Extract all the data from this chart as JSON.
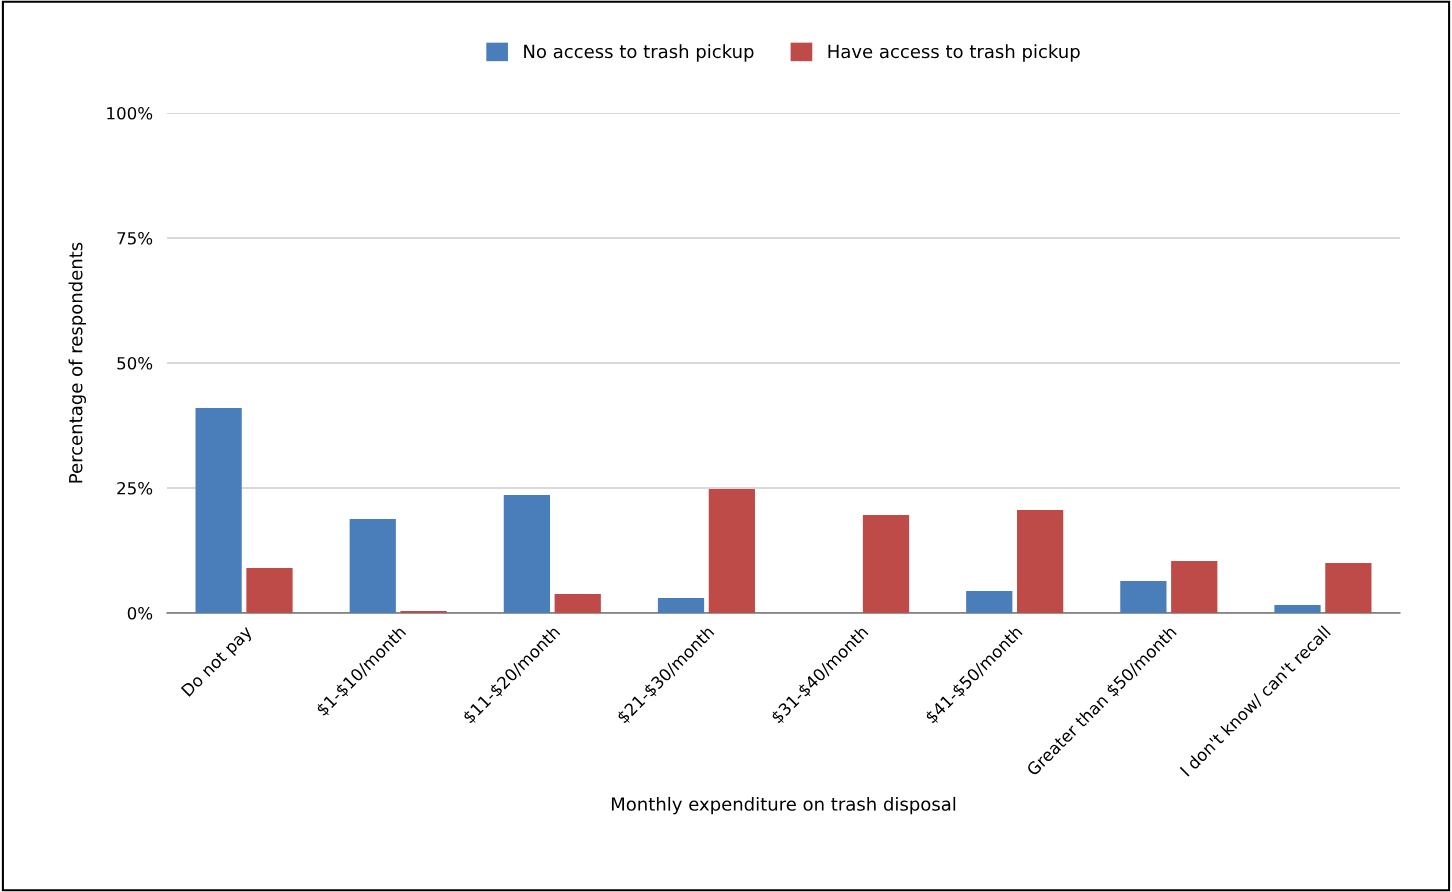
{
  "chart_data": {
    "type": "bar",
    "xlabel": "Monthly expenditure on trash disposal",
    "ylabel": "Percentage of respondents",
    "categories": [
      "Do not pay",
      "$1-$10/month",
      "$11-$20/month",
      "$21-$30/month",
      "$31-$40/month",
      "$41-$50/month",
      "Greater than $50/month",
      "I don't know/ can't recall"
    ],
    "series": [
      {
        "name": "No access to trash pickup",
        "color": "#4a7ebb",
        "values": [
          41,
          18.8,
          23.6,
          3,
          0,
          4.4,
          6.4,
          1.6
        ]
      },
      {
        "name": "Have access to trash pickup",
        "color": "#be4b48",
        "values": [
          9,
          0.4,
          3.8,
          24.8,
          19.6,
          20.6,
          10.4,
          10
        ]
      }
    ],
    "ylim": [
      0,
      100
    ],
    "yticks": [
      {
        "value": 0,
        "label": "0%"
      },
      {
        "value": 25,
        "label": "25%"
      },
      {
        "value": 50,
        "label": "50%"
      },
      {
        "value": 75,
        "label": "75%"
      },
      {
        "value": 100,
        "label": "100%"
      }
    ],
    "grid": "y",
    "legend": "top"
  }
}
